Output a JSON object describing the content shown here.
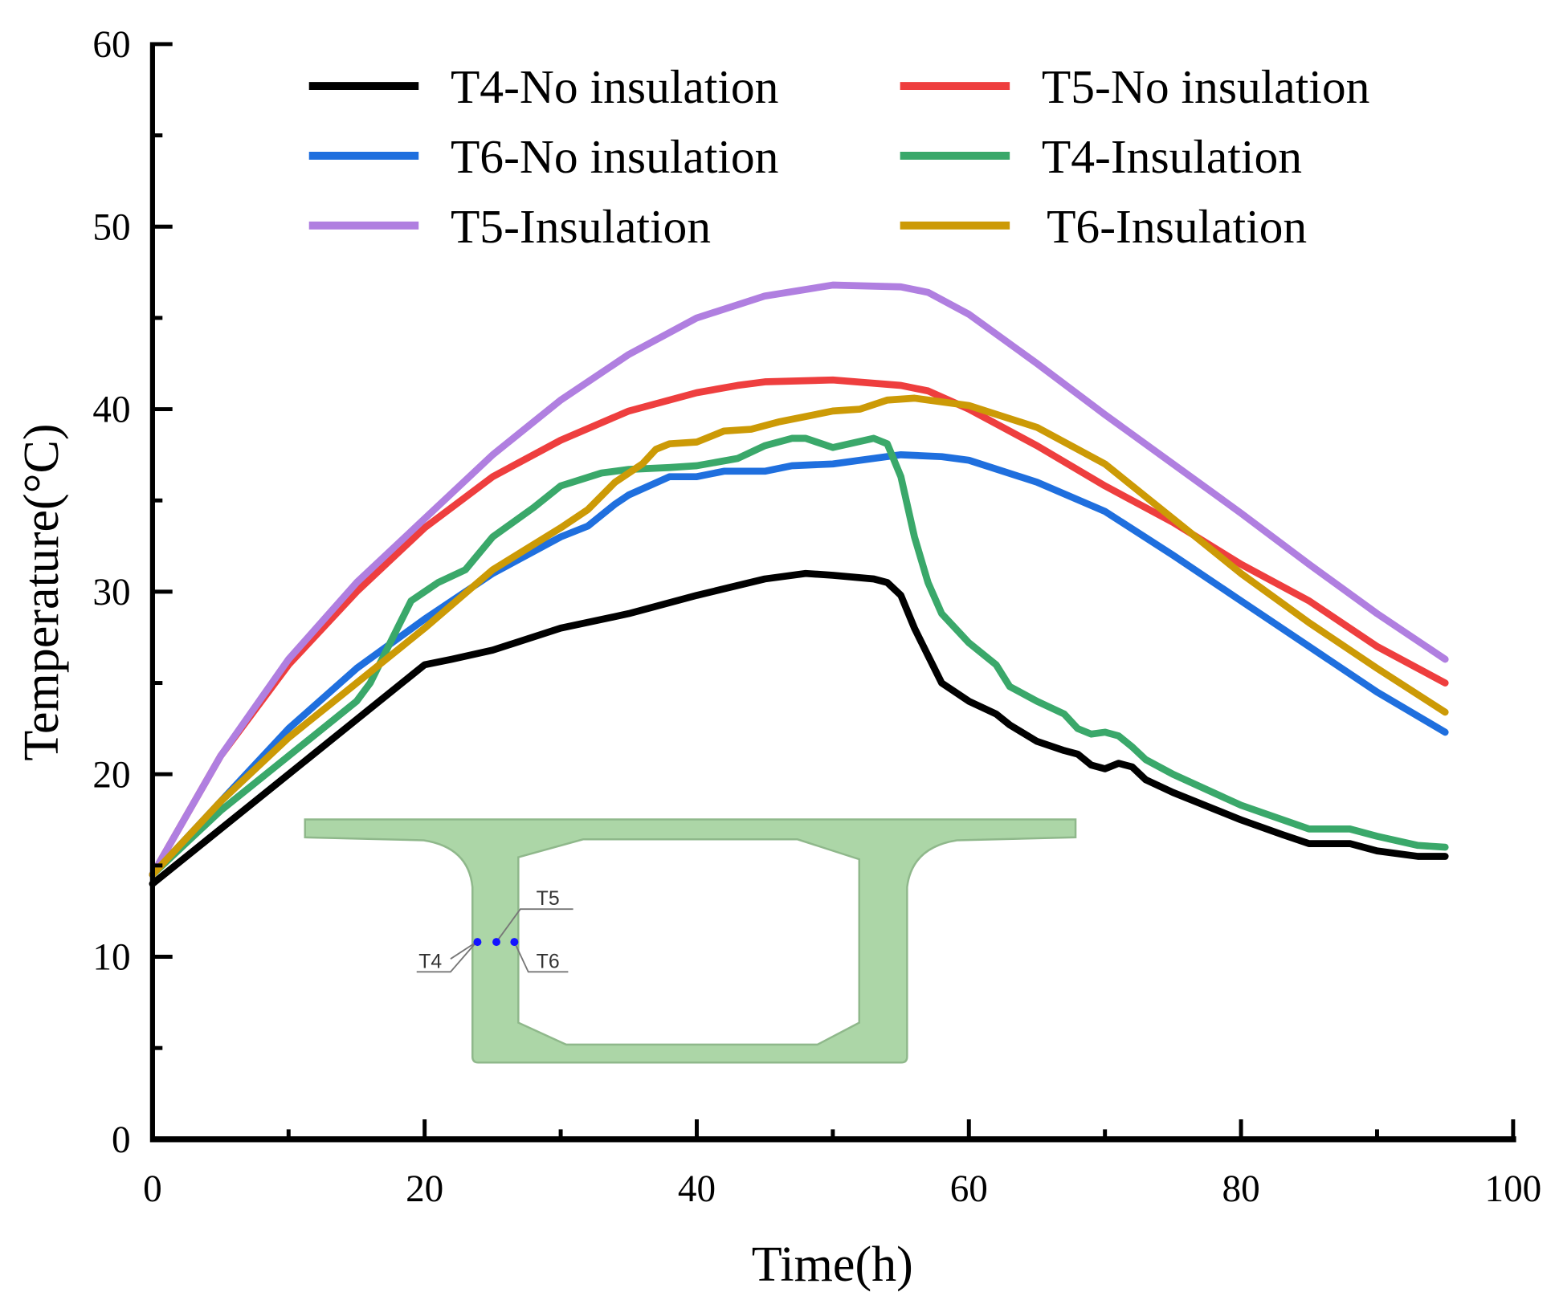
{
  "chart_data": {
    "type": "line",
    "xlabel": "Time(h)",
    "ylabel": "Temperature(°C)",
    "xlim": [
      0,
      100
    ],
    "ylim": [
      0,
      60
    ],
    "xticks": [
      "0",
      "20",
      "40",
      "60",
      "80",
      "100"
    ],
    "yticks": [
      "0",
      "10",
      "20",
      "30",
      "40",
      "50",
      "60"
    ],
    "grid": false,
    "legend_position": "top",
    "series": [
      {
        "name": "T4-No insulation",
        "color": "#000000",
        "x": [
          0,
          5,
          10,
          15,
          20,
          22,
          25,
          30,
          35,
          40,
          45,
          48,
          50,
          53,
          54,
          55,
          56,
          57,
          58,
          60,
          62,
          63,
          65,
          67,
          68,
          69,
          70,
          71,
          72,
          73,
          75,
          78,
          80,
          83,
          85,
          88,
          90,
          93,
          95
        ],
        "y": [
          14,
          17,
          20,
          23,
          26,
          26.3,
          26.8,
          28,
          28.8,
          29.8,
          30.7,
          31,
          30.9,
          30.7,
          30.5,
          29.8,
          28,
          26.5,
          25,
          24,
          23.3,
          22.7,
          21.8,
          21.3,
          21.1,
          20.5,
          20.3,
          20.6,
          20.4,
          19.7,
          19,
          18.1,
          17.5,
          16.7,
          16.2,
          16.2,
          15.8,
          15.5,
          15.5
        ]
      },
      {
        "name": "T5-No insulation",
        "color": "#ee3e3e",
        "x": [
          0,
          5,
          10,
          15,
          20,
          25,
          30,
          35,
          40,
          43,
          45,
          50,
          55,
          57,
          60,
          65,
          70,
          75,
          80,
          85,
          90,
          95
        ],
        "y": [
          14.5,
          21,
          26,
          30,
          33.5,
          36.3,
          38.3,
          39.9,
          40.9,
          41.3,
          41.5,
          41.6,
          41.3,
          41,
          40,
          38,
          35.8,
          33.8,
          31.5,
          29.5,
          27,
          25
        ]
      },
      {
        "name": "T6-No insulation",
        "color": "#1f6fde",
        "x": [
          0,
          5,
          10,
          15,
          20,
          25,
          30,
          32,
          34,
          35,
          38,
          40,
          42,
          45,
          47,
          50,
          52,
          55,
          58,
          60,
          65,
          70,
          75,
          80,
          85,
          90,
          95
        ],
        "y": [
          14.5,
          18.5,
          22.5,
          25.8,
          28.5,
          31,
          33,
          33.6,
          34.8,
          35.3,
          36.3,
          36.3,
          36.6,
          36.6,
          36.9,
          37,
          37.2,
          37.5,
          37.4,
          37.2,
          36,
          34.4,
          32,
          29.5,
          27,
          24.5,
          22.3
        ]
      },
      {
        "name": "T4-Insulation",
        "color": "#3aa86a",
        "x": [
          0,
          5,
          10,
          15,
          16,
          18,
          19,
          20,
          21,
          23,
          25,
          28,
          30,
          33,
          35,
          38,
          40,
          43,
          45,
          47,
          48,
          50,
          53,
          54,
          55,
          56,
          57,
          58,
          60,
          62,
          63,
          65,
          67,
          68,
          69,
          70,
          71,
          72,
          73,
          75,
          80,
          85,
          88,
          90,
          93,
          95
        ],
        "y": [
          14.5,
          18,
          21,
          24,
          25,
          28,
          29.5,
          30,
          30.5,
          31.2,
          33,
          34.6,
          35.8,
          36.5,
          36.7,
          36.8,
          36.9,
          37.3,
          38,
          38.4,
          38.4,
          37.9,
          38.4,
          38.1,
          36.3,
          33,
          30.5,
          28.8,
          27.2,
          26,
          24.8,
          24,
          23.3,
          22.5,
          22.2,
          22.3,
          22.1,
          21.5,
          20.8,
          20,
          18.3,
          17,
          17,
          16.6,
          16.1,
          16
        ]
      },
      {
        "name": "T5-Insulation",
        "color": "#b07fe0",
        "x": [
          0,
          5,
          10,
          15,
          20,
          25,
          30,
          35,
          40,
          45,
          50,
          55,
          57,
          60,
          65,
          70,
          75,
          80,
          85,
          90,
          95
        ],
        "y": [
          14.5,
          21,
          26.3,
          30.5,
          34,
          37.5,
          40.5,
          43,
          45,
          46.2,
          46.8,
          46.7,
          46.4,
          45.2,
          42.5,
          39.7,
          37,
          34.3,
          31.5,
          28.8,
          26.3
        ]
      },
      {
        "name": "T6-Insulation",
        "color": "#cc9a06",
        "x": [
          0,
          5,
          10,
          15,
          20,
          25,
          30,
          32,
          34,
          36,
          37,
          38,
          40,
          42,
          44,
          46,
          50,
          52,
          54,
          56,
          60,
          65,
          70,
          75,
          80,
          85,
          90,
          95
        ],
        "y": [
          14.5,
          18.5,
          22,
          25,
          28,
          31.2,
          33.5,
          34.5,
          36,
          37,
          37.8,
          38.1,
          38.2,
          38.8,
          38.9,
          39.3,
          39.9,
          40,
          40.5,
          40.6,
          40.2,
          39,
          37,
          34,
          31,
          28.3,
          25.8,
          23.4
        ]
      }
    ],
    "inset": {
      "labels": [
        "T4",
        "T5",
        "T6"
      ]
    }
  }
}
